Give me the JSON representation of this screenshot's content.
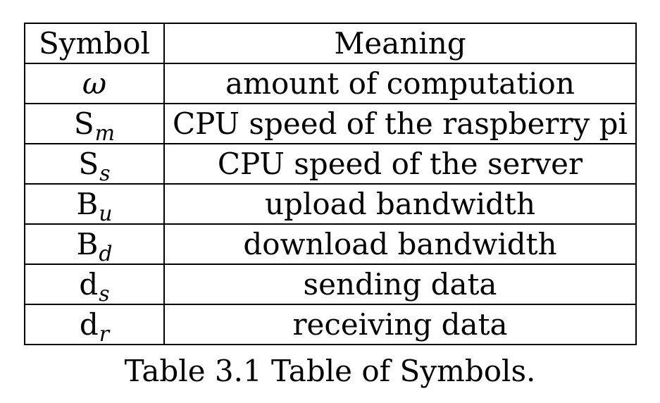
{
  "table": {
    "headers": {
      "symbol": "Symbol",
      "meaning": "Meaning"
    },
    "rows": [
      {
        "symbol_base": "",
        "symbol_italic": "ω",
        "symbol_sub": "",
        "meaning": "amount of computation"
      },
      {
        "symbol_base": "S",
        "symbol_italic": "",
        "symbol_sub": "m",
        "meaning": "CPU speed of the raspberry pi"
      },
      {
        "symbol_base": "S",
        "symbol_italic": "",
        "symbol_sub": "s",
        "meaning": "CPU speed of the server"
      },
      {
        "symbol_base": "B",
        "symbol_italic": "",
        "symbol_sub": "u",
        "meaning": "upload bandwidth"
      },
      {
        "symbol_base": "B",
        "symbol_italic": "",
        "symbol_sub": "d",
        "meaning": "download bandwidth"
      },
      {
        "symbol_base": "d",
        "symbol_italic": "",
        "symbol_sub": "s",
        "meaning": "sending data"
      },
      {
        "symbol_base": "d",
        "symbol_italic": "",
        "symbol_sub": "r",
        "meaning": "receiving data"
      }
    ]
  },
  "caption": "Table 3.1 Table of Symbols."
}
